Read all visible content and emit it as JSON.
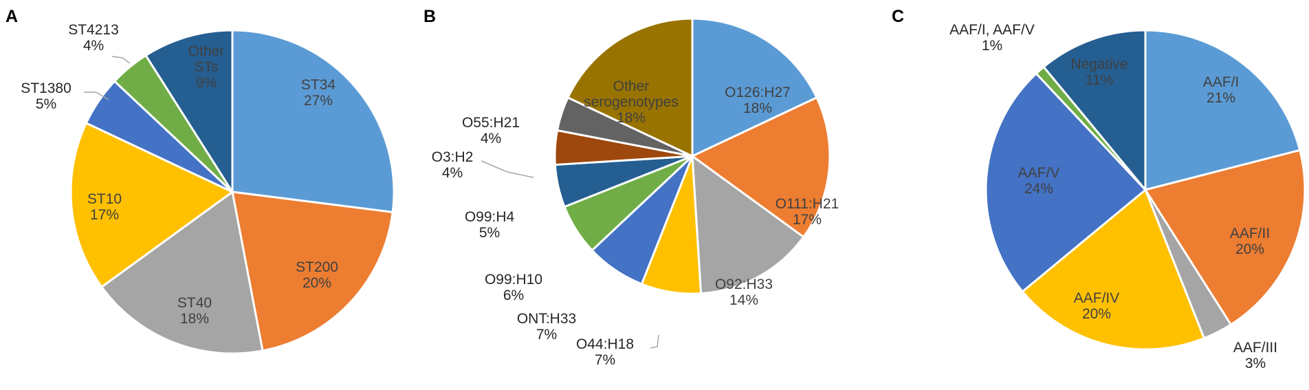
{
  "colors": {
    "blue": "#5B9BD5",
    "orange": "#ED7D31",
    "gray": "#A5A5A5",
    "gold": "#FFC000",
    "royal_blue": "#4472C4",
    "green": "#70AD47",
    "navy": "#255E91",
    "brown": "#9E480E",
    "dark_gray": "#636363",
    "olive": "#997300"
  },
  "chart_data": [
    {
      "type": "pie",
      "panel": "A",
      "slices": [
        {
          "label": "ST34",
          "value": 27,
          "pct": "27%",
          "color": "#5B9BD5"
        },
        {
          "label": "ST200",
          "value": 20,
          "pct": "20%",
          "color": "#ED7D31"
        },
        {
          "label": "ST40",
          "value": 18,
          "pct": "18%",
          "color": "#A5A5A5"
        },
        {
          "label": "ST10",
          "value": 17,
          "pct": "17%",
          "color": "#FFC000"
        },
        {
          "label": "ST1380",
          "value": 5,
          "pct": "5%",
          "color": "#4472C4"
        },
        {
          "label": "ST4213",
          "value": 4,
          "pct": "4%",
          "color": "#70AD47"
        },
        {
          "label": "Other STs",
          "value": 9,
          "pct": "9%",
          "color": "#255E91"
        }
      ]
    },
    {
      "type": "pie",
      "panel": "B",
      "slices": [
        {
          "label": "O126:H27",
          "value": 18,
          "pct": "18%",
          "color": "#5B9BD5"
        },
        {
          "label": "O111:H21",
          "value": 17,
          "pct": "17%",
          "color": "#ED7D31"
        },
        {
          "label": "O92:H33",
          "value": 14,
          "pct": "14%",
          "color": "#A5A5A5"
        },
        {
          "label": "O44:H18",
          "value": 7,
          "pct": "7%",
          "color": "#FFC000"
        },
        {
          "label": "ONT:H33",
          "value": 7,
          "pct": "7%",
          "color": "#4472C4"
        },
        {
          "label": "O99:H10",
          "value": 6,
          "pct": "6%",
          "color": "#70AD47"
        },
        {
          "label": "O99:H4",
          "value": 5,
          "pct": "5%",
          "color": "#255E91"
        },
        {
          "label": "O3:H2",
          "value": 4,
          "pct": "4%",
          "color": "#9E480E"
        },
        {
          "label": "O55:H21",
          "value": 4,
          "pct": "4%",
          "color": "#636363"
        },
        {
          "label": "Other serogenotypes",
          "value": 18,
          "pct": "18%",
          "color": "#997300"
        }
      ]
    },
    {
      "type": "pie",
      "panel": "C",
      "slices": [
        {
          "label": "AAF/I",
          "value": 21,
          "pct": "21%",
          "color": "#5B9BD5"
        },
        {
          "label": "AAF/II",
          "value": 20,
          "pct": "20%",
          "color": "#ED7D31"
        },
        {
          "label": "AAF/III",
          "value": 3,
          "pct": "3%",
          "color": "#A5A5A5"
        },
        {
          "label": "AAF/IV",
          "value": 20,
          "pct": "20%",
          "color": "#FFC000"
        },
        {
          "label": "AAF/V",
          "value": 24,
          "pct": "24%",
          "color": "#4472C4"
        },
        {
          "label": "AAF/I, AAF/V",
          "value": 1,
          "pct": "1%",
          "color": "#70AD47"
        },
        {
          "label": "Negative",
          "value": 11,
          "pct": "11%",
          "color": "#255E91"
        }
      ]
    }
  ]
}
